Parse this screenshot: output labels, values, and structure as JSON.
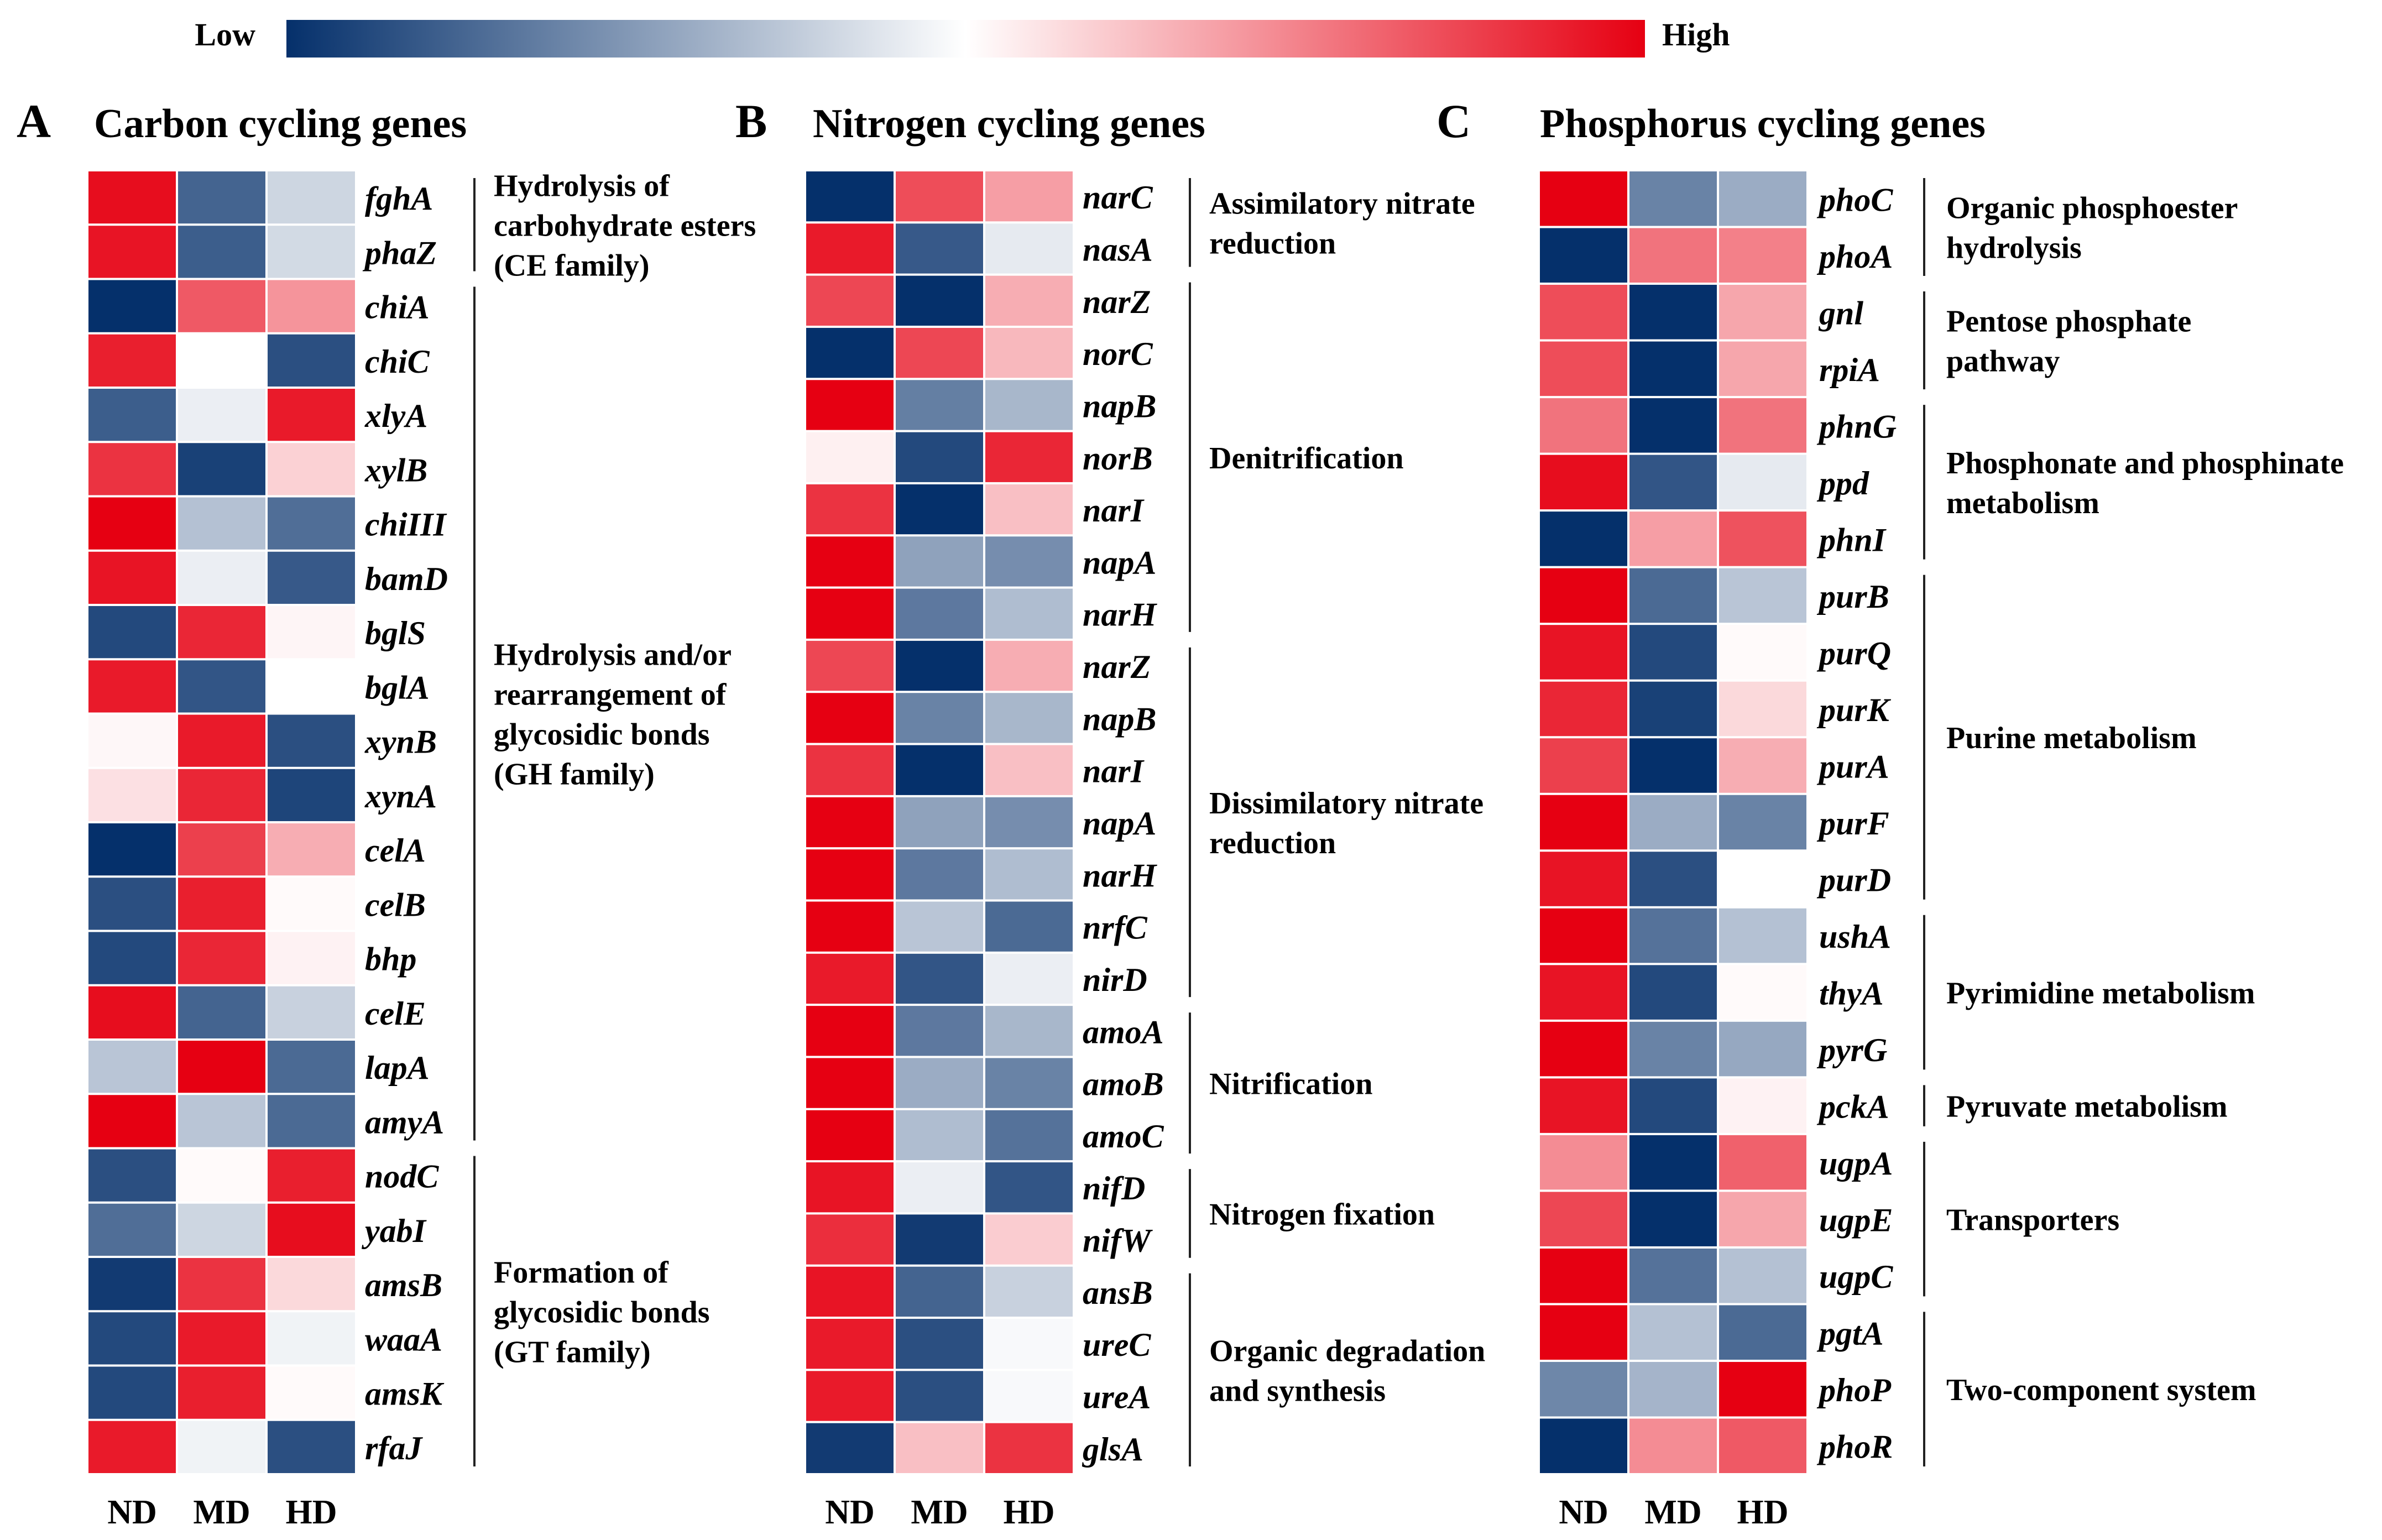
{
  "colorbar": {
    "low_label": "Low",
    "high_label": "High",
    "low_color": "#05306b",
    "mid_color": "#ffffff",
    "high_color": "#e60012"
  },
  "chart_data": [
    {
      "type": "heatmap",
      "panel": "A",
      "title": "Carbon cycling genes",
      "columns": [
        "ND",
        "MD",
        "HD"
      ],
      "scale": "-1 = Low (blue), 0 = white, 1 = High (red)",
      "rows": [
        {
          "gene": "fghA",
          "values": [
            0.95,
            -0.75,
            -0.2
          ]
        },
        {
          "gene": "phaZ",
          "values": [
            0.92,
            -0.78,
            -0.18
          ]
        },
        {
          "gene": "chiA",
          "values": [
            -1.0,
            0.65,
            0.42
          ]
        },
        {
          "gene": "chiC",
          "values": [
            0.88,
            0.0,
            -0.85
          ]
        },
        {
          "gene": "xlyA",
          "values": [
            -0.78,
            -0.08,
            0.9
          ]
        },
        {
          "gene": "xylB",
          "values": [
            0.8,
            -0.92,
            0.18
          ]
        },
        {
          "gene": "chiIII",
          "values": [
            1.0,
            -0.3,
            -0.7
          ]
        },
        {
          "gene": "bamD",
          "values": [
            0.92,
            -0.08,
            -0.8
          ]
        },
        {
          "gene": "bglS",
          "values": [
            -0.88,
            0.85,
            0.04
          ]
        },
        {
          "gene": "bglA",
          "values": [
            0.9,
            -0.82,
            0.0
          ]
        },
        {
          "gene": "xynB",
          "values": [
            0.03,
            0.9,
            -0.85
          ]
        },
        {
          "gene": "xynA",
          "values": [
            0.12,
            0.85,
            -0.9
          ]
        },
        {
          "gene": "celA",
          "values": [
            -1.0,
            0.75,
            0.32
          ]
        },
        {
          "gene": "celB",
          "values": [
            -0.85,
            0.88,
            0.02
          ]
        },
        {
          "gene": "bhp",
          "values": [
            -0.88,
            0.85,
            0.05
          ]
        },
        {
          "gene": "celE",
          "values": [
            0.95,
            -0.75,
            -0.22
          ]
        },
        {
          "gene": "lapA",
          "values": [
            -0.28,
            1.0,
            -0.72
          ]
        },
        {
          "gene": "amyA",
          "values": [
            1.0,
            -0.28,
            -0.72
          ]
        },
        {
          "gene": "nodC",
          "values": [
            -0.85,
            0.02,
            0.88
          ]
        },
        {
          "gene": "yabI",
          "values": [
            -0.7,
            -0.2,
            0.95
          ]
        },
        {
          "gene": "amsB",
          "values": [
            -0.95,
            0.8,
            0.15
          ]
        },
        {
          "gene": "waaA",
          "values": [
            -0.88,
            0.9,
            -0.06
          ]
        },
        {
          "gene": "amsK",
          "values": [
            -0.88,
            0.88,
            0.02
          ]
        },
        {
          "gene": "rfaJ",
          "values": [
            0.9,
            -0.06,
            -0.85
          ]
        }
      ],
      "groups": [
        {
          "lines": [
            "Hydrolysis of",
            "carbohydrate esters",
            "(CE family)"
          ],
          "start": 0,
          "end": 1
        },
        {
          "lines": [
            "Hydrolysis and/or",
            "rearrangement of",
            "glycosidic bonds",
            "(GH family)"
          ],
          "start": 2,
          "end": 17
        },
        {
          "lines": [
            "Formation of",
            "glycosidic bonds",
            "(GT family)"
          ],
          "start": 18,
          "end": 23
        }
      ]
    },
    {
      "type": "heatmap",
      "panel": "B",
      "title": "Nitrogen cycling genes",
      "columns": [
        "ND",
        "MD",
        "HD"
      ],
      "scale": "-1 = Low (blue), 0 = white, 1 = High (red)",
      "rows": [
        {
          "gene": "narC",
          "values": [
            -1.0,
            0.7,
            0.38
          ]
        },
        {
          "gene": "nasA",
          "values": [
            0.9,
            -0.8,
            -0.1
          ]
        },
        {
          "gene": "narZ",
          "values": [
            0.72,
            -1.0,
            0.32
          ]
        },
        {
          "gene": "norC",
          "values": [
            -1.0,
            0.72,
            0.28
          ]
        },
        {
          "gene": "napB",
          "values": [
            1.0,
            -0.62,
            -0.35
          ]
        },
        {
          "gene": "norB",
          "values": [
            0.06,
            -0.88,
            0.85
          ]
        },
        {
          "gene": "narI",
          "values": [
            0.8,
            -1.0,
            0.25
          ]
        },
        {
          "gene": "napA",
          "values": [
            1.0,
            -0.45,
            -0.55
          ]
        },
        {
          "gene": "narH",
          "values": [
            1.0,
            -0.65,
            -0.32
          ]
        },
        {
          "gene": "narZ",
          "values": [
            0.72,
            -1.0,
            0.32
          ]
        },
        {
          "gene": "napB",
          "values": [
            1.0,
            -0.6,
            -0.35
          ]
        },
        {
          "gene": "narI",
          "values": [
            0.8,
            -1.0,
            0.25
          ]
        },
        {
          "gene": "napA",
          "values": [
            1.0,
            -0.45,
            -0.55
          ]
        },
        {
          "gene": "narH",
          "values": [
            1.0,
            -0.65,
            -0.32
          ]
        },
        {
          "gene": "nrfC",
          "values": [
            1.0,
            -0.28,
            -0.72
          ]
        },
        {
          "gene": "nirD",
          "values": [
            0.9,
            -0.82,
            -0.08
          ]
        },
        {
          "gene": "amoA",
          "values": [
            1.0,
            -0.65,
            -0.35
          ]
        },
        {
          "gene": "amoB",
          "values": [
            1.0,
            -0.4,
            -0.6
          ]
        },
        {
          "gene": "amoC",
          "values": [
            1.0,
            -0.32,
            -0.68
          ]
        },
        {
          "gene": "nifD",
          "values": [
            0.92,
            -0.08,
            -0.82
          ]
        },
        {
          "gene": "nifW",
          "values": [
            0.82,
            -0.95,
            0.2
          ]
        },
        {
          "gene": "ansB",
          "values": [
            0.92,
            -0.75,
            -0.22
          ]
        },
        {
          "gene": "ureC",
          "values": [
            0.9,
            -0.85,
            -0.03
          ]
        },
        {
          "gene": "ureA",
          "values": [
            0.9,
            -0.85,
            -0.03
          ]
        },
        {
          "gene": "glsA",
          "values": [
            -0.95,
            0.25,
            0.8
          ]
        }
      ],
      "groups": [
        {
          "lines": [
            "Assimilatory nitrate",
            "reduction"
          ],
          "start": 0,
          "end": 1
        },
        {
          "lines": [
            "Denitrification"
          ],
          "start": 2,
          "end": 8
        },
        {
          "lines": [
            "Dissimilatory nitrate",
            "reduction"
          ],
          "start": 9,
          "end": 15
        },
        {
          "lines": [
            "Nitrification"
          ],
          "start": 16,
          "end": 18
        },
        {
          "lines": [
            "Nitrogen fixation"
          ],
          "start": 19,
          "end": 20
        },
        {
          "lines": [
            "Organic degradation",
            "and synthesis"
          ],
          "start": 21,
          "end": 24
        }
      ]
    },
    {
      "type": "heatmap",
      "panel": "C",
      "title": "Phosphorus cycling genes",
      "columns": [
        "ND",
        "MD",
        "HD"
      ],
      "scale": "-1 = Low (blue), 0 = white, 1 = High (red)",
      "rows": [
        {
          "gene": "phoC",
          "values": [
            1.0,
            -0.6,
            -0.4
          ]
        },
        {
          "gene": "phoA",
          "values": [
            -1.0,
            0.55,
            0.5
          ]
        },
        {
          "gene": "gnl",
          "values": [
            0.7,
            -1.0,
            0.35
          ]
        },
        {
          "gene": "rpiA",
          "values": [
            0.7,
            -1.0,
            0.35
          ]
        },
        {
          "gene": "phnG",
          "values": [
            0.55,
            -1.0,
            0.55
          ]
        },
        {
          "gene": "ppd",
          "values": [
            0.95,
            -0.82,
            -0.1
          ]
        },
        {
          "gene": "phnI",
          "values": [
            -1.0,
            0.38,
            0.68
          ]
        },
        {
          "gene": "purB",
          "values": [
            1.0,
            -0.72,
            -0.28
          ]
        },
        {
          "gene": "purQ",
          "values": [
            0.92,
            -0.88,
            0.02
          ]
        },
        {
          "gene": "purK",
          "values": [
            0.85,
            -0.92,
            0.15
          ]
        },
        {
          "gene": "purA",
          "values": [
            0.75,
            -1.0,
            0.32
          ]
        },
        {
          "gene": "purF",
          "values": [
            1.0,
            -0.4,
            -0.6
          ]
        },
        {
          "gene": "purD",
          "values": [
            0.92,
            -0.85,
            0.0
          ]
        },
        {
          "gene": "ushA",
          "values": [
            1.0,
            -0.68,
            -0.3
          ]
        },
        {
          "gene": "thyA",
          "values": [
            0.92,
            -0.88,
            0.02
          ]
        },
        {
          "gene": "pyrG",
          "values": [
            1.0,
            -0.6,
            -0.42
          ]
        },
        {
          "gene": "pckA",
          "values": [
            0.92,
            -0.88,
            0.05
          ]
        },
        {
          "gene": "ugpA",
          "values": [
            0.45,
            -1.0,
            0.62
          ]
        },
        {
          "gene": "ugpE",
          "values": [
            0.72,
            -1.0,
            0.35
          ]
        },
        {
          "gene": "ugpC",
          "values": [
            1.0,
            -0.68,
            -0.3
          ]
        },
        {
          "gene": "pgtA",
          "values": [
            1.0,
            -0.3,
            -0.72
          ]
        },
        {
          "gene": "phoP",
          "values": [
            -0.58,
            -0.36,
            1.0
          ]
        },
        {
          "gene": "phoR",
          "values": [
            -1.0,
            0.45,
            0.65
          ]
        }
      ],
      "groups": [
        {
          "lines": [
            "Organic phosphoester",
            "hydrolysis"
          ],
          "start": 0,
          "end": 1
        },
        {
          "lines": [
            "Pentose phosphate",
            "pathway"
          ],
          "start": 2,
          "end": 3
        },
        {
          "lines": [
            "Phosphonate and phosphinate",
            "metabolism"
          ],
          "start": 4,
          "end": 6
        },
        {
          "lines": [
            "Purine metabolism"
          ],
          "start": 7,
          "end": 12
        },
        {
          "lines": [
            "Pyrimidine metabolism"
          ],
          "start": 13,
          "end": 15
        },
        {
          "lines": [
            "Pyruvate metabolism"
          ],
          "start": 16,
          "end": 16
        },
        {
          "lines": [
            "Transporters"
          ],
          "start": 17,
          "end": 19
        },
        {
          "lines": [
            "Two-component system"
          ],
          "start": 20,
          "end": 22
        }
      ]
    }
  ]
}
